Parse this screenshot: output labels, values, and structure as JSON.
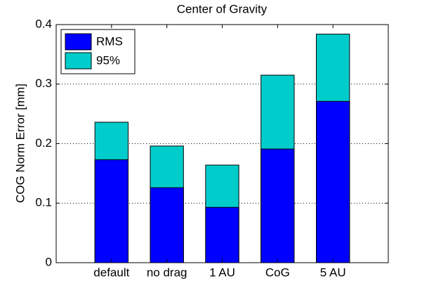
{
  "chart_data": {
    "type": "bar",
    "bar_mode": "overlay",
    "title": "Center of Gravity",
    "y_label": "COG Norm Error [mm]",
    "categories": [
      "default",
      "no drag",
      "1 AU",
      "CoG",
      "5 AU"
    ],
    "series": [
      {
        "name": "RMS",
        "color": "#0000ff",
        "values": [
          0.173,
          0.126,
          0.093,
          0.191,
          0.271
        ]
      },
      {
        "name": "95%",
        "color": "#00cccc",
        "values": [
          0.236,
          0.196,
          0.164,
          0.315,
          0.384
        ]
      }
    ],
    "ylim": [
      0,
      0.4
    ],
    "yticks": [
      0,
      0.1,
      0.2,
      0.3,
      0.4
    ],
    "grid": true,
    "legend": "top-left"
  }
}
